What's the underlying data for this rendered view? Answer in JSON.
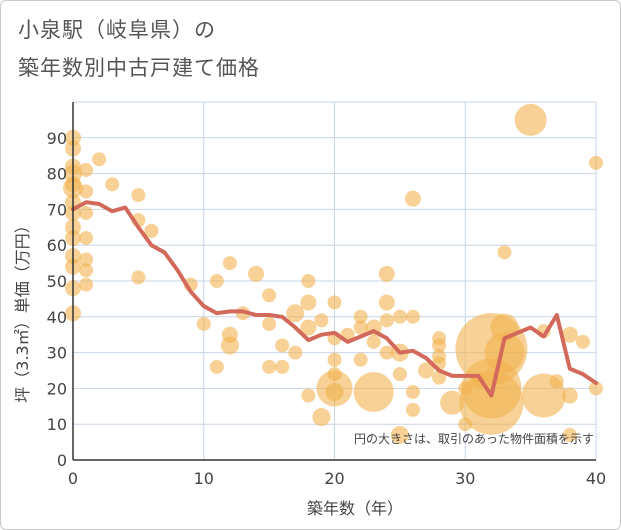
{
  "chart_data": {
    "type": "scatter",
    "title_line1": "小泉駅（岐阜県）の",
    "title_line2": "築年数別中古戸建て価格",
    "xlabel": "築年数（年）",
    "ylabel": "坪（3.3㎡）単価（万円）",
    "xlim": [
      0,
      40
    ],
    "ylim": [
      0,
      100
    ],
    "xticks": [
      0,
      10,
      20,
      30,
      40
    ],
    "yticks": [
      0,
      10,
      20,
      30,
      40,
      50,
      60,
      70,
      80,
      90
    ],
    "note": "円の大きさは、取引のあった物件面積を示す",
    "colors": {
      "bubble": "#f2b24f",
      "line": "#d2695a",
      "grid": "#c8d6e5",
      "axis": "#333333"
    },
    "points": [
      {
        "x": 0,
        "y": 90,
        "s": 8
      },
      {
        "x": 0,
        "y": 87,
        "s": 8
      },
      {
        "x": 0,
        "y": 82,
        "s": 8
      },
      {
        "x": 0,
        "y": 80,
        "s": 9
      },
      {
        "x": 0,
        "y": 77,
        "s": 8
      },
      {
        "x": 0,
        "y": 76,
        "s": 10
      },
      {
        "x": 0,
        "y": 72,
        "s": 8
      },
      {
        "x": 0,
        "y": 69,
        "s": 8
      },
      {
        "x": 0,
        "y": 65,
        "s": 8
      },
      {
        "x": 0,
        "y": 62,
        "s": 8
      },
      {
        "x": 0,
        "y": 57,
        "s": 8
      },
      {
        "x": 0,
        "y": 54,
        "s": 8
      },
      {
        "x": 0,
        "y": 48,
        "s": 8
      },
      {
        "x": 0,
        "y": 41,
        "s": 8
      },
      {
        "x": 1,
        "y": 81,
        "s": 7
      },
      {
        "x": 1,
        "y": 75,
        "s": 7
      },
      {
        "x": 1,
        "y": 69,
        "s": 7
      },
      {
        "x": 1,
        "y": 62,
        "s": 7
      },
      {
        "x": 1,
        "y": 56,
        "s": 7
      },
      {
        "x": 1,
        "y": 53,
        "s": 7
      },
      {
        "x": 1,
        "y": 49,
        "s": 7
      },
      {
        "x": 2,
        "y": 84,
        "s": 7
      },
      {
        "x": 3,
        "y": 77,
        "s": 7
      },
      {
        "x": 5,
        "y": 74,
        "s": 7
      },
      {
        "x": 5,
        "y": 67,
        "s": 7
      },
      {
        "x": 5,
        "y": 51,
        "s": 7
      },
      {
        "x": 6,
        "y": 64,
        "s": 7
      },
      {
        "x": 9,
        "y": 49,
        "s": 7
      },
      {
        "x": 10,
        "y": 38,
        "s": 7
      },
      {
        "x": 11,
        "y": 50,
        "s": 7
      },
      {
        "x": 11,
        "y": 26,
        "s": 7
      },
      {
        "x": 12,
        "y": 55,
        "s": 7
      },
      {
        "x": 12,
        "y": 35,
        "s": 8
      },
      {
        "x": 12,
        "y": 32,
        "s": 9
      },
      {
        "x": 13,
        "y": 41,
        "s": 7
      },
      {
        "x": 14,
        "y": 52,
        "s": 8
      },
      {
        "x": 15,
        "y": 46,
        "s": 7
      },
      {
        "x": 15,
        "y": 38,
        "s": 7
      },
      {
        "x": 15,
        "y": 26,
        "s": 7
      },
      {
        "x": 16,
        "y": 32,
        "s": 7
      },
      {
        "x": 16,
        "y": 26,
        "s": 7
      },
      {
        "x": 17,
        "y": 30,
        "s": 7
      },
      {
        "x": 17,
        "y": 41,
        "s": 9
      },
      {
        "x": 18,
        "y": 50,
        "s": 7
      },
      {
        "x": 18,
        "y": 44,
        "s": 8
      },
      {
        "x": 18,
        "y": 37,
        "s": 8
      },
      {
        "x": 18,
        "y": 18,
        "s": 7
      },
      {
        "x": 19,
        "y": 39,
        "s": 7
      },
      {
        "x": 19,
        "y": 12,
        "s": 9
      },
      {
        "x": 20,
        "y": 44,
        "s": 7
      },
      {
        "x": 20,
        "y": 34,
        "s": 7
      },
      {
        "x": 20,
        "y": 28,
        "s": 7
      },
      {
        "x": 20,
        "y": 24,
        "s": 7
      },
      {
        "x": 20,
        "y": 20,
        "s": 18
      },
      {
        "x": 20,
        "y": 19,
        "s": 9
      },
      {
        "x": 21,
        "y": 35,
        "s": 7
      },
      {
        "x": 22,
        "y": 40,
        "s": 7
      },
      {
        "x": 22,
        "y": 37,
        "s": 7
      },
      {
        "x": 22,
        "y": 28,
        "s": 7
      },
      {
        "x": 23,
        "y": 37,
        "s": 8
      },
      {
        "x": 23,
        "y": 33,
        "s": 7
      },
      {
        "x": 23,
        "y": 19,
        "s": 20
      },
      {
        "x": 24,
        "y": 52,
        "s": 8
      },
      {
        "x": 24,
        "y": 44,
        "s": 8
      },
      {
        "x": 24,
        "y": 39,
        "s": 7
      },
      {
        "x": 24,
        "y": 30,
        "s": 7
      },
      {
        "x": 25,
        "y": 40,
        "s": 7
      },
      {
        "x": 25,
        "y": 30,
        "s": 9
      },
      {
        "x": 25,
        "y": 24,
        "s": 7
      },
      {
        "x": 25,
        "y": 7,
        "s": 9
      },
      {
        "x": 26,
        "y": 73,
        "s": 8
      },
      {
        "x": 26,
        "y": 40,
        "s": 7
      },
      {
        "x": 26,
        "y": 19,
        "s": 7
      },
      {
        "x": 26,
        "y": 14,
        "s": 7
      },
      {
        "x": 27,
        "y": 25,
        "s": 8
      },
      {
        "x": 28,
        "y": 34,
        "s": 7
      },
      {
        "x": 28,
        "y": 32,
        "s": 7
      },
      {
        "x": 28,
        "y": 29,
        "s": 7
      },
      {
        "x": 28,
        "y": 27,
        "s": 7
      },
      {
        "x": 28,
        "y": 23,
        "s": 7
      },
      {
        "x": 29,
        "y": 16,
        "s": 12
      },
      {
        "x": 30,
        "y": 20,
        "s": 7
      },
      {
        "x": 30,
        "y": 10,
        "s": 7
      },
      {
        "x": 31,
        "y": 22,
        "s": 7
      },
      {
        "x": 32,
        "y": 31,
        "s": 36
      },
      {
        "x": 32,
        "y": 20,
        "s": 30
      },
      {
        "x": 32,
        "y": 16,
        "s": 32
      },
      {
        "x": 33,
        "y": 37,
        "s": 14
      },
      {
        "x": 33,
        "y": 30,
        "s": 20
      },
      {
        "x": 33,
        "y": 58,
        "s": 7
      },
      {
        "x": 35,
        "y": 95,
        "s": 16
      },
      {
        "x": 36,
        "y": 36,
        "s": 7
      },
      {
        "x": 36,
        "y": 18,
        "s": 22
      },
      {
        "x": 37,
        "y": 22,
        "s": 7
      },
      {
        "x": 38,
        "y": 35,
        "s": 8
      },
      {
        "x": 38,
        "y": 18,
        "s": 8
      },
      {
        "x": 38,
        "y": 7,
        "s": 7
      },
      {
        "x": 39,
        "y": 33,
        "s": 7
      },
      {
        "x": 40,
        "y": 83,
        "s": 7
      },
      {
        "x": 40,
        "y": 20,
        "s": 7
      }
    ],
    "trend": [
      {
        "x": 0,
        "y": 70
      },
      {
        "x": 1,
        "y": 72
      },
      {
        "x": 2,
        "y": 71.5
      },
      {
        "x": 3,
        "y": 69.5
      },
      {
        "x": 4,
        "y": 70.5
      },
      {
        "x": 5,
        "y": 65
      },
      {
        "x": 6,
        "y": 60
      },
      {
        "x": 7,
        "y": 58
      },
      {
        "x": 8,
        "y": 53
      },
      {
        "x": 9,
        "y": 47
      },
      {
        "x": 10,
        "y": 43
      },
      {
        "x": 11,
        "y": 41
      },
      {
        "x": 12,
        "y": 41.5
      },
      {
        "x": 13,
        "y": 41.5
      },
      {
        "x": 14,
        "y": 40.5
      },
      {
        "x": 15,
        "y": 40.5
      },
      {
        "x": 16,
        "y": 40
      },
      {
        "x": 17,
        "y": 37
      },
      {
        "x": 18,
        "y": 33.5
      },
      {
        "x": 19,
        "y": 35
      },
      {
        "x": 20,
        "y": 35.5
      },
      {
        "x": 21,
        "y": 33
      },
      {
        "x": 22,
        "y": 34.5
      },
      {
        "x": 23,
        "y": 36
      },
      {
        "x": 24,
        "y": 34
      },
      {
        "x": 25,
        "y": 30
      },
      {
        "x": 26,
        "y": 30.5
      },
      {
        "x": 27,
        "y": 28.5
      },
      {
        "x": 28,
        "y": 25
      },
      {
        "x": 29,
        "y": 23.5
      },
      {
        "x": 30,
        "y": 23.5
      },
      {
        "x": 31,
        "y": 23.5
      },
      {
        "x": 32,
        "y": 18
      },
      {
        "x": 33,
        "y": 34
      },
      {
        "x": 34,
        "y": 35.5
      },
      {
        "x": 35,
        "y": 37
      },
      {
        "x": 36,
        "y": 34.5
      },
      {
        "x": 37,
        "y": 40.5
      },
      {
        "x": 38,
        "y": 25.5
      },
      {
        "x": 39,
        "y": 24
      },
      {
        "x": 40,
        "y": 21.5
      }
    ]
  }
}
